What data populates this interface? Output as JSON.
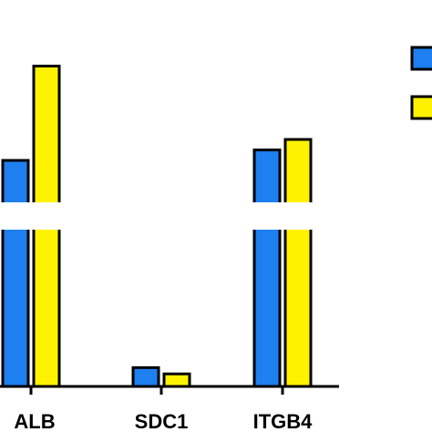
{
  "chart_data": {
    "type": "bar",
    "categories": [
      "ALB",
      "SDC1",
      "ITGB4"
    ],
    "series": [
      {
        "color": "#1e7ff0",
        "values": [
          1.8,
          0.12,
          2.0
        ]
      },
      {
        "color": "#fff200",
        "values": [
          3.6,
          0.08,
          2.2
        ]
      }
    ],
    "y_axis_break": true,
    "title": "",
    "xlabel": "",
    "ylabel": "",
    "grid": false,
    "legend": {
      "placement": "top-right",
      "entries": [
        "",
        ""
      ]
    }
  }
}
